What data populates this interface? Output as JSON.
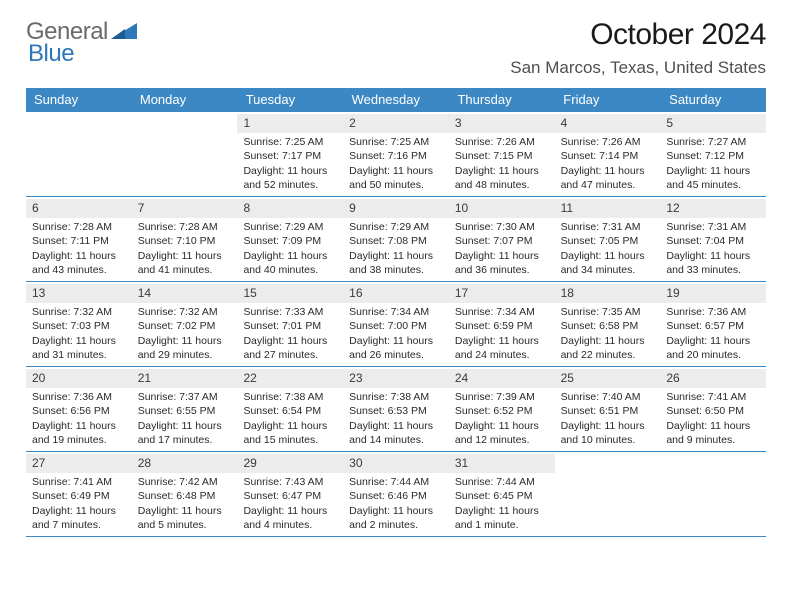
{
  "brand": {
    "part1": "General",
    "part2": "Blue"
  },
  "title": "October 2024",
  "location": "San Marcos, Texas, United States",
  "colors": {
    "header_bg": "#3c88c4",
    "header_text": "#ffffff",
    "daynum_bg": "#ececec",
    "row_border": "#3c88c4",
    "brand_gray": "#6a6a6a",
    "brand_blue": "#2e77b8"
  },
  "weekdays": [
    "Sunday",
    "Monday",
    "Tuesday",
    "Wednesday",
    "Thursday",
    "Friday",
    "Saturday"
  ],
  "weeks": [
    [
      null,
      null,
      {
        "n": "1",
        "sr": "Sunrise: 7:25 AM",
        "ss": "Sunset: 7:17 PM",
        "d1": "Daylight: 11 hours",
        "d2": "and 52 minutes."
      },
      {
        "n": "2",
        "sr": "Sunrise: 7:25 AM",
        "ss": "Sunset: 7:16 PM",
        "d1": "Daylight: 11 hours",
        "d2": "and 50 minutes."
      },
      {
        "n": "3",
        "sr": "Sunrise: 7:26 AM",
        "ss": "Sunset: 7:15 PM",
        "d1": "Daylight: 11 hours",
        "d2": "and 48 minutes."
      },
      {
        "n": "4",
        "sr": "Sunrise: 7:26 AM",
        "ss": "Sunset: 7:14 PM",
        "d1": "Daylight: 11 hours",
        "d2": "and 47 minutes."
      },
      {
        "n": "5",
        "sr": "Sunrise: 7:27 AM",
        "ss": "Sunset: 7:12 PM",
        "d1": "Daylight: 11 hours",
        "d2": "and 45 minutes."
      }
    ],
    [
      {
        "n": "6",
        "sr": "Sunrise: 7:28 AM",
        "ss": "Sunset: 7:11 PM",
        "d1": "Daylight: 11 hours",
        "d2": "and 43 minutes."
      },
      {
        "n": "7",
        "sr": "Sunrise: 7:28 AM",
        "ss": "Sunset: 7:10 PM",
        "d1": "Daylight: 11 hours",
        "d2": "and 41 minutes."
      },
      {
        "n": "8",
        "sr": "Sunrise: 7:29 AM",
        "ss": "Sunset: 7:09 PM",
        "d1": "Daylight: 11 hours",
        "d2": "and 40 minutes."
      },
      {
        "n": "9",
        "sr": "Sunrise: 7:29 AM",
        "ss": "Sunset: 7:08 PM",
        "d1": "Daylight: 11 hours",
        "d2": "and 38 minutes."
      },
      {
        "n": "10",
        "sr": "Sunrise: 7:30 AM",
        "ss": "Sunset: 7:07 PM",
        "d1": "Daylight: 11 hours",
        "d2": "and 36 minutes."
      },
      {
        "n": "11",
        "sr": "Sunrise: 7:31 AM",
        "ss": "Sunset: 7:05 PM",
        "d1": "Daylight: 11 hours",
        "d2": "and 34 minutes."
      },
      {
        "n": "12",
        "sr": "Sunrise: 7:31 AM",
        "ss": "Sunset: 7:04 PM",
        "d1": "Daylight: 11 hours",
        "d2": "and 33 minutes."
      }
    ],
    [
      {
        "n": "13",
        "sr": "Sunrise: 7:32 AM",
        "ss": "Sunset: 7:03 PM",
        "d1": "Daylight: 11 hours",
        "d2": "and 31 minutes."
      },
      {
        "n": "14",
        "sr": "Sunrise: 7:32 AM",
        "ss": "Sunset: 7:02 PM",
        "d1": "Daylight: 11 hours",
        "d2": "and 29 minutes."
      },
      {
        "n": "15",
        "sr": "Sunrise: 7:33 AM",
        "ss": "Sunset: 7:01 PM",
        "d1": "Daylight: 11 hours",
        "d2": "and 27 minutes."
      },
      {
        "n": "16",
        "sr": "Sunrise: 7:34 AM",
        "ss": "Sunset: 7:00 PM",
        "d1": "Daylight: 11 hours",
        "d2": "and 26 minutes."
      },
      {
        "n": "17",
        "sr": "Sunrise: 7:34 AM",
        "ss": "Sunset: 6:59 PM",
        "d1": "Daylight: 11 hours",
        "d2": "and 24 minutes."
      },
      {
        "n": "18",
        "sr": "Sunrise: 7:35 AM",
        "ss": "Sunset: 6:58 PM",
        "d1": "Daylight: 11 hours",
        "d2": "and 22 minutes."
      },
      {
        "n": "19",
        "sr": "Sunrise: 7:36 AM",
        "ss": "Sunset: 6:57 PM",
        "d1": "Daylight: 11 hours",
        "d2": "and 20 minutes."
      }
    ],
    [
      {
        "n": "20",
        "sr": "Sunrise: 7:36 AM",
        "ss": "Sunset: 6:56 PM",
        "d1": "Daylight: 11 hours",
        "d2": "and 19 minutes."
      },
      {
        "n": "21",
        "sr": "Sunrise: 7:37 AM",
        "ss": "Sunset: 6:55 PM",
        "d1": "Daylight: 11 hours",
        "d2": "and 17 minutes."
      },
      {
        "n": "22",
        "sr": "Sunrise: 7:38 AM",
        "ss": "Sunset: 6:54 PM",
        "d1": "Daylight: 11 hours",
        "d2": "and 15 minutes."
      },
      {
        "n": "23",
        "sr": "Sunrise: 7:38 AM",
        "ss": "Sunset: 6:53 PM",
        "d1": "Daylight: 11 hours",
        "d2": "and 14 minutes."
      },
      {
        "n": "24",
        "sr": "Sunrise: 7:39 AM",
        "ss": "Sunset: 6:52 PM",
        "d1": "Daylight: 11 hours",
        "d2": "and 12 minutes."
      },
      {
        "n": "25",
        "sr": "Sunrise: 7:40 AM",
        "ss": "Sunset: 6:51 PM",
        "d1": "Daylight: 11 hours",
        "d2": "and 10 minutes."
      },
      {
        "n": "26",
        "sr": "Sunrise: 7:41 AM",
        "ss": "Sunset: 6:50 PM",
        "d1": "Daylight: 11 hours",
        "d2": "and 9 minutes."
      }
    ],
    [
      {
        "n": "27",
        "sr": "Sunrise: 7:41 AM",
        "ss": "Sunset: 6:49 PM",
        "d1": "Daylight: 11 hours",
        "d2": "and 7 minutes."
      },
      {
        "n": "28",
        "sr": "Sunrise: 7:42 AM",
        "ss": "Sunset: 6:48 PM",
        "d1": "Daylight: 11 hours",
        "d2": "and 5 minutes."
      },
      {
        "n": "29",
        "sr": "Sunrise: 7:43 AM",
        "ss": "Sunset: 6:47 PM",
        "d1": "Daylight: 11 hours",
        "d2": "and 4 minutes."
      },
      {
        "n": "30",
        "sr": "Sunrise: 7:44 AM",
        "ss": "Sunset: 6:46 PM",
        "d1": "Daylight: 11 hours",
        "d2": "and 2 minutes."
      },
      {
        "n": "31",
        "sr": "Sunrise: 7:44 AM",
        "ss": "Sunset: 6:45 PM",
        "d1": "Daylight: 11 hours",
        "d2": "and 1 minute."
      },
      null,
      null
    ]
  ]
}
